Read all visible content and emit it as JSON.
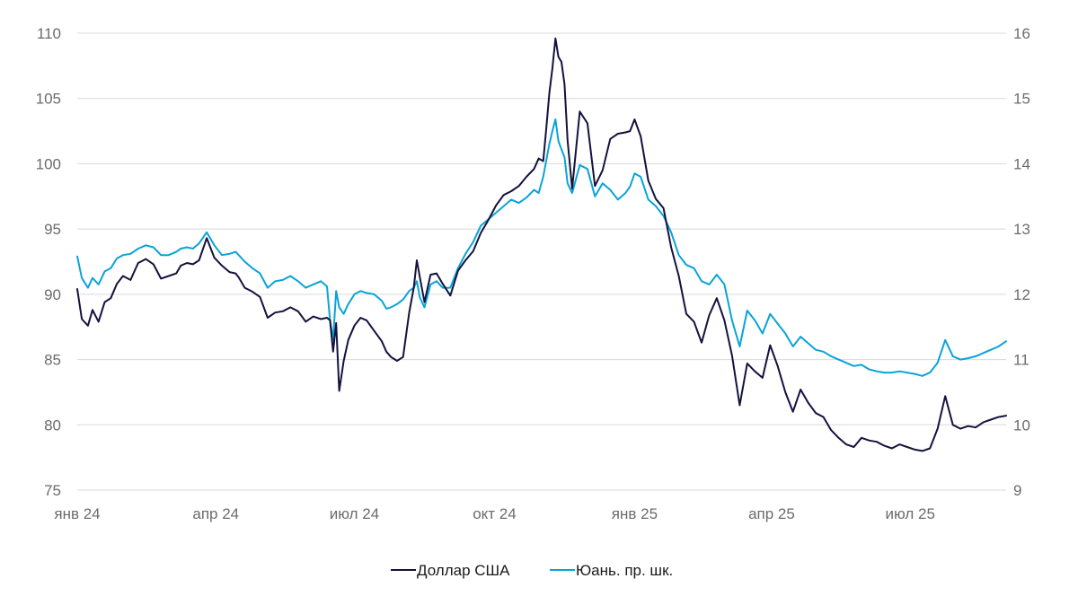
{
  "chart_data": {
    "type": "line",
    "title": "",
    "xlabel": "",
    "ylabel": "",
    "y2label": "",
    "x_ticks": [
      "янв 24",
      "апр 24",
      "июл 24",
      "окт 24",
      "янв 25",
      "апр 25",
      "июл 25"
    ],
    "x_tick_positions": [
      0,
      91,
      182,
      274,
      366,
      456,
      547
    ],
    "x_range": [
      0,
      610
    ],
    "ylim": [
      75,
      110
    ],
    "y_ticks": [
      75,
      80,
      85,
      90,
      95,
      100,
      105,
      110
    ],
    "y2lim": [
      9,
      16
    ],
    "y2_ticks": [
      9,
      10,
      11,
      12,
      13,
      14,
      15,
      16
    ],
    "grid": true,
    "legend_position": "bottom-center",
    "series": [
      {
        "name": "Доллар США",
        "axis": "left",
        "color": "#14123f",
        "x": [
          0,
          3,
          7,
          10,
          14,
          18,
          22,
          26,
          30,
          35,
          40,
          45,
          50,
          55,
          60,
          65,
          68,
          72,
          76,
          80,
          85,
          90,
          95,
          100,
          104,
          106,
          110,
          115,
          120,
          125,
          130,
          135,
          140,
          145,
          150,
          155,
          160,
          164,
          166,
          168,
          170,
          172,
          175,
          178,
          182,
          186,
          190,
          195,
          200,
          203,
          206,
          210,
          214,
          218,
          221,
          223,
          225,
          228,
          232,
          236,
          240,
          245,
          250,
          255,
          260,
          265,
          270,
          275,
          280,
          285,
          290,
          295,
          300,
          303,
          306,
          308,
          310,
          312,
          314,
          316,
          318,
          320,
          322,
          325,
          330,
          335,
          340,
          345,
          350,
          355,
          360,
          363,
          366,
          370,
          375,
          380,
          385,
          390,
          395,
          400,
          405,
          410,
          415,
          420,
          425,
          430,
          435,
          440,
          445,
          450,
          455,
          460,
          465,
          470,
          475,
          480,
          485,
          490,
          495,
          500,
          505,
          510,
          515,
          520,
          525,
          530,
          535,
          540,
          545,
          550,
          555,
          560,
          565,
          570,
          575,
          580,
          585,
          590,
          595,
          600,
          605,
          610
        ],
        "values": [
          90.4,
          88.1,
          87.6,
          88.8,
          87.9,
          89.4,
          89.7,
          90.8,
          91.4,
          91.1,
          92.4,
          92.7,
          92.3,
          91.2,
          91.4,
          91.6,
          92.2,
          92.4,
          92.3,
          92.6,
          94.3,
          92.8,
          92.2,
          91.7,
          91.6,
          91.3,
          90.5,
          90.2,
          89.8,
          88.2,
          88.6,
          88.7,
          89.0,
          88.7,
          87.9,
          88.3,
          88.1,
          88.2,
          88.0,
          85.6,
          87.8,
          82.6,
          84.9,
          86.5,
          87.6,
          88.2,
          88.0,
          87.2,
          86.4,
          85.6,
          85.2,
          84.9,
          85.2,
          88.6,
          90.5,
          92.6,
          91.3,
          89.4,
          91.5,
          91.6,
          90.8,
          89.9,
          91.8,
          92.6,
          93.3,
          94.7,
          95.7,
          96.8,
          97.6,
          97.9,
          98.3,
          99.0,
          99.6,
          100.4,
          100.2,
          102.7,
          105.4,
          107.3,
          109.6,
          108.2,
          107.8,
          106.1,
          101.8,
          98.1,
          104.0,
          103.1,
          98.3,
          99.5,
          101.9,
          102.3,
          102.4,
          102.5,
          103.4,
          102.1,
          98.7,
          97.3,
          96.6,
          93.6,
          91.4,
          88.5,
          87.9,
          86.3,
          88.4,
          89.7,
          88.0,
          85.3,
          81.5,
          84.7,
          84.1,
          83.6,
          86.1,
          84.5,
          82.5,
          81.0,
          82.7,
          81.7,
          80.9,
          80.6,
          79.6,
          79.0,
          78.5,
          78.3,
          79.0,
          78.8,
          78.7,
          78.4,
          78.2,
          78.5,
          78.3,
          78.1,
          78.0,
          78.2,
          79.7,
          82.2,
          80.0,
          79.7,
          79.9,
          79.8,
          80.2,
          80.4,
          80.6,
          80.7
        ]
      },
      {
        "name": "Юань. пр. шк.",
        "axis": "right",
        "color": "#0aa3d9",
        "x": [
          0,
          3,
          7,
          10,
          14,
          18,
          22,
          26,
          30,
          35,
          40,
          45,
          50,
          55,
          60,
          65,
          68,
          72,
          76,
          80,
          85,
          90,
          95,
          100,
          104,
          106,
          110,
          115,
          120,
          125,
          130,
          135,
          140,
          145,
          150,
          155,
          160,
          164,
          166,
          168,
          170,
          172,
          175,
          178,
          182,
          186,
          190,
          195,
          200,
          203,
          206,
          210,
          214,
          218,
          221,
          223,
          225,
          228,
          232,
          236,
          240,
          245,
          250,
          255,
          260,
          265,
          270,
          275,
          280,
          285,
          290,
          295,
          300,
          303,
          306,
          308,
          310,
          312,
          314,
          316,
          318,
          320,
          322,
          325,
          330,
          335,
          340,
          345,
          350,
          355,
          360,
          363,
          366,
          370,
          375,
          380,
          385,
          390,
          395,
          400,
          405,
          410,
          415,
          420,
          425,
          430,
          435,
          440,
          445,
          450,
          455,
          460,
          465,
          470,
          475,
          480,
          485,
          490,
          495,
          500,
          505,
          510,
          515,
          520,
          525,
          530,
          535,
          540,
          545,
          550,
          555,
          560,
          565,
          570,
          575,
          580,
          585,
          590,
          595,
          600,
          605,
          610
        ],
        "values": [
          12.58,
          12.25,
          12.1,
          12.25,
          12.15,
          12.35,
          12.4,
          12.55,
          12.6,
          12.62,
          12.7,
          12.75,
          12.72,
          12.6,
          12.6,
          12.65,
          12.7,
          12.72,
          12.7,
          12.78,
          12.95,
          12.75,
          12.6,
          12.62,
          12.65,
          12.6,
          12.5,
          12.4,
          12.32,
          12.1,
          12.2,
          12.22,
          12.28,
          12.2,
          12.1,
          12.15,
          12.2,
          12.12,
          11.6,
          11.3,
          12.05,
          11.8,
          11.7,
          11.85,
          12.0,
          12.05,
          12.02,
          12.0,
          11.9,
          11.78,
          11.8,
          11.85,
          11.92,
          12.05,
          12.1,
          12.2,
          11.95,
          11.8,
          12.15,
          12.2,
          12.1,
          12.1,
          12.4,
          12.62,
          12.8,
          13.05,
          13.15,
          13.25,
          13.35,
          13.45,
          13.4,
          13.48,
          13.6,
          13.55,
          13.8,
          14.05,
          14.3,
          14.5,
          14.68,
          14.35,
          14.22,
          14.1,
          13.7,
          13.55,
          13.98,
          13.92,
          13.5,
          13.7,
          13.6,
          13.45,
          13.55,
          13.65,
          13.85,
          13.8,
          13.45,
          13.35,
          13.2,
          12.95,
          12.6,
          12.45,
          12.4,
          12.2,
          12.15,
          12.3,
          12.15,
          11.6,
          11.2,
          11.75,
          11.6,
          11.4,
          11.7,
          11.55,
          11.4,
          11.2,
          11.35,
          11.25,
          11.15,
          11.12,
          11.05,
          11.0,
          10.95,
          10.9,
          10.92,
          10.85,
          10.82,
          10.8,
          10.8,
          10.82,
          10.8,
          10.78,
          10.75,
          10.8,
          10.95,
          11.3,
          11.05,
          11.0,
          11.02,
          11.05,
          11.1,
          11.15,
          11.2,
          11.28
        ]
      }
    ]
  }
}
